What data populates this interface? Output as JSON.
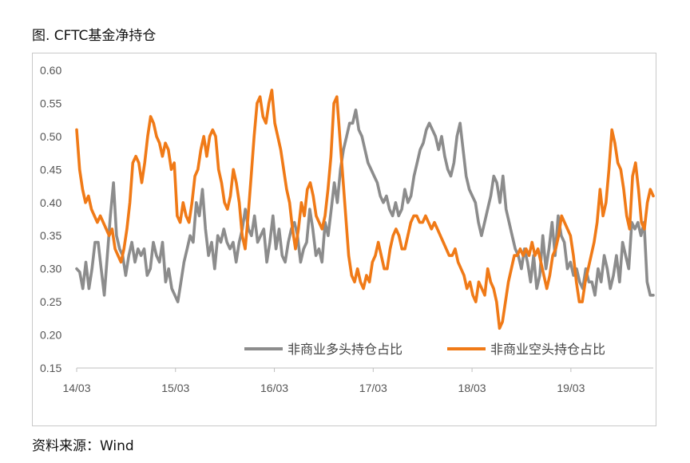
{
  "figure_title": "图. CFTC基金净持仓",
  "source_note": "资料来源：Wind",
  "chart_data": {
    "type": "line",
    "title": "图. CFTC基金净持仓",
    "xlabel": "",
    "ylabel": "",
    "ylim": [
      0.15,
      0.6
    ],
    "yticks": [
      "0.60",
      "0.55",
      "0.50",
      "0.45",
      "0.40",
      "0.35",
      "0.30",
      "0.25",
      "0.20",
      "0.15"
    ],
    "xticks": [
      "14/03",
      "15/03",
      "16/03",
      "17/03",
      "18/03",
      "19/03"
    ],
    "grid": false,
    "legend_position": "bottom-right",
    "colors": {
      "long": "#8c8c8c",
      "short": "#f07a17"
    },
    "x_start": "2014-03",
    "x_end": "2020-01",
    "series": [
      {
        "name": "非商业多头持仓占比",
        "values": [
          0.3,
          0.295,
          0.27,
          0.31,
          0.27,
          0.3,
          0.34,
          0.34,
          0.3,
          0.26,
          0.32,
          0.38,
          0.43,
          0.35,
          0.33,
          0.32,
          0.29,
          0.32,
          0.34,
          0.31,
          0.33,
          0.32,
          0.33,
          0.29,
          0.3,
          0.34,
          0.32,
          0.31,
          0.34,
          0.28,
          0.3,
          0.27,
          0.26,
          0.25,
          0.28,
          0.31,
          0.33,
          0.35,
          0.34,
          0.4,
          0.38,
          0.42,
          0.36,
          0.32,
          0.34,
          0.3,
          0.35,
          0.34,
          0.36,
          0.34,
          0.33,
          0.34,
          0.31,
          0.34,
          0.36,
          0.39,
          0.36,
          0.35,
          0.38,
          0.34,
          0.35,
          0.36,
          0.31,
          0.34,
          0.38,
          0.33,
          0.36,
          0.32,
          0.31,
          0.34,
          0.36,
          0.37,
          0.35,
          0.31,
          0.33,
          0.34,
          0.39,
          0.36,
          0.32,
          0.33,
          0.31,
          0.37,
          0.35,
          0.39,
          0.43,
          0.4,
          0.45,
          0.48,
          0.5,
          0.52,
          0.52,
          0.54,
          0.51,
          0.5,
          0.48,
          0.46,
          0.45,
          0.44,
          0.43,
          0.41,
          0.4,
          0.41,
          0.39,
          0.38,
          0.4,
          0.38,
          0.39,
          0.42,
          0.4,
          0.41,
          0.44,
          0.46,
          0.48,
          0.49,
          0.51,
          0.52,
          0.51,
          0.5,
          0.48,
          0.5,
          0.47,
          0.45,
          0.44,
          0.46,
          0.5,
          0.52,
          0.48,
          0.44,
          0.42,
          0.41,
          0.4,
          0.37,
          0.35,
          0.37,
          0.39,
          0.41,
          0.44,
          0.43,
          0.4,
          0.44,
          0.39,
          0.37,
          0.35,
          0.33,
          0.32,
          0.3,
          0.33,
          0.31,
          0.28,
          0.32,
          0.27,
          0.29,
          0.35,
          0.3,
          0.33,
          0.37,
          0.32,
          0.38,
          0.35,
          0.34,
          0.3,
          0.31,
          0.29,
          0.3,
          0.28,
          0.27,
          0.3,
          0.28,
          0.28,
          0.26,
          0.3,
          0.28,
          0.32,
          0.3,
          0.27,
          0.29,
          0.32,
          0.28,
          0.34,
          0.32,
          0.3,
          0.37,
          0.36,
          0.37,
          0.35,
          0.37,
          0.28,
          0.26,
          0.26
        ]
      },
      {
        "name": "非商业空头持仓占比",
        "values": [
          0.51,
          0.45,
          0.42,
          0.4,
          0.41,
          0.39,
          0.38,
          0.37,
          0.38,
          0.37,
          0.36,
          0.35,
          0.36,
          0.33,
          0.32,
          0.31,
          0.33,
          0.36,
          0.4,
          0.46,
          0.47,
          0.46,
          0.43,
          0.46,
          0.5,
          0.53,
          0.52,
          0.5,
          0.49,
          0.47,
          0.49,
          0.48,
          0.45,
          0.46,
          0.38,
          0.37,
          0.4,
          0.38,
          0.37,
          0.4,
          0.44,
          0.45,
          0.48,
          0.5,
          0.47,
          0.5,
          0.51,
          0.5,
          0.45,
          0.43,
          0.4,
          0.39,
          0.41,
          0.45,
          0.43,
          0.4,
          0.35,
          0.33,
          0.38,
          0.44,
          0.5,
          0.55,
          0.56,
          0.53,
          0.52,
          0.55,
          0.57,
          0.52,
          0.5,
          0.48,
          0.45,
          0.42,
          0.4,
          0.36,
          0.33,
          0.36,
          0.4,
          0.38,
          0.42,
          0.43,
          0.41,
          0.38,
          0.37,
          0.36,
          0.38,
          0.42,
          0.47,
          0.55,
          0.56,
          0.5,
          0.44,
          0.38,
          0.32,
          0.29,
          0.28,
          0.3,
          0.28,
          0.27,
          0.29,
          0.28,
          0.31,
          0.32,
          0.34,
          0.32,
          0.3,
          0.3,
          0.33,
          0.35,
          0.36,
          0.35,
          0.33,
          0.33,
          0.35,
          0.37,
          0.38,
          0.38,
          0.37,
          0.37,
          0.38,
          0.37,
          0.36,
          0.37,
          0.36,
          0.35,
          0.34,
          0.33,
          0.32,
          0.32,
          0.33,
          0.31,
          0.3,
          0.29,
          0.27,
          0.28,
          0.26,
          0.25,
          0.28,
          0.27,
          0.26,
          0.3,
          0.28,
          0.27,
          0.25,
          0.21,
          0.22,
          0.25,
          0.28,
          0.3,
          0.32,
          0.32,
          0.33,
          0.32,
          0.33,
          0.32,
          0.34,
          0.32,
          0.33,
          0.31,
          0.29,
          0.27,
          0.29,
          0.32,
          0.33,
          0.35,
          0.38,
          0.37,
          0.36,
          0.35,
          0.32,
          0.28,
          0.25,
          0.25,
          0.28,
          0.3,
          0.32,
          0.34,
          0.37,
          0.42,
          0.38,
          0.4,
          0.45,
          0.51,
          0.49,
          0.46,
          0.45,
          0.42,
          0.38,
          0.36,
          0.44,
          0.46,
          0.42,
          0.37,
          0.36,
          0.4,
          0.42,
          0.41
        ]
      }
    ]
  }
}
